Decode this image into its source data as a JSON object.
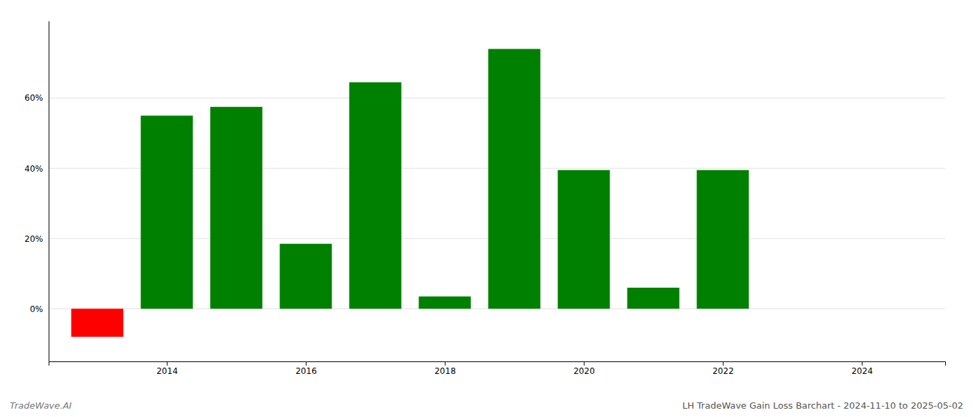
{
  "chart_data": {
    "type": "bar",
    "title": "LH TradeWave Gain Loss Barchart - 2024-11-10 to 2025-05-02",
    "annotations": [
      "TradeWave.AI"
    ],
    "x": [
      2013,
      2014,
      2015,
      2016,
      2017,
      2018,
      2019,
      2020,
      2021,
      2022,
      2023
    ],
    "values": [
      -8.0,
      55.0,
      57.5,
      18.5,
      64.5,
      3.5,
      74.0,
      39.5,
      6.0,
      39.5,
      0.0
    ],
    "colors": [
      "#ff0000",
      "#008000",
      "#008000",
      "#008000",
      "#008000",
      "#008000",
      "#008000",
      "#008000",
      "#008000",
      "#008000",
      "#008000"
    ],
    "xlim": [
      2012.3,
      2025.2
    ],
    "xticks": [
      2014,
      2016,
      2018,
      2020,
      2022,
      2024
    ],
    "ylim": [
      -15,
      82
    ],
    "yticks": [
      {
        "value": 0,
        "label": "0%"
      },
      {
        "value": 20,
        "label": "20%"
      },
      {
        "value": 40,
        "label": "40%"
      },
      {
        "value": 60,
        "label": "60%"
      }
    ],
    "grid": true
  }
}
